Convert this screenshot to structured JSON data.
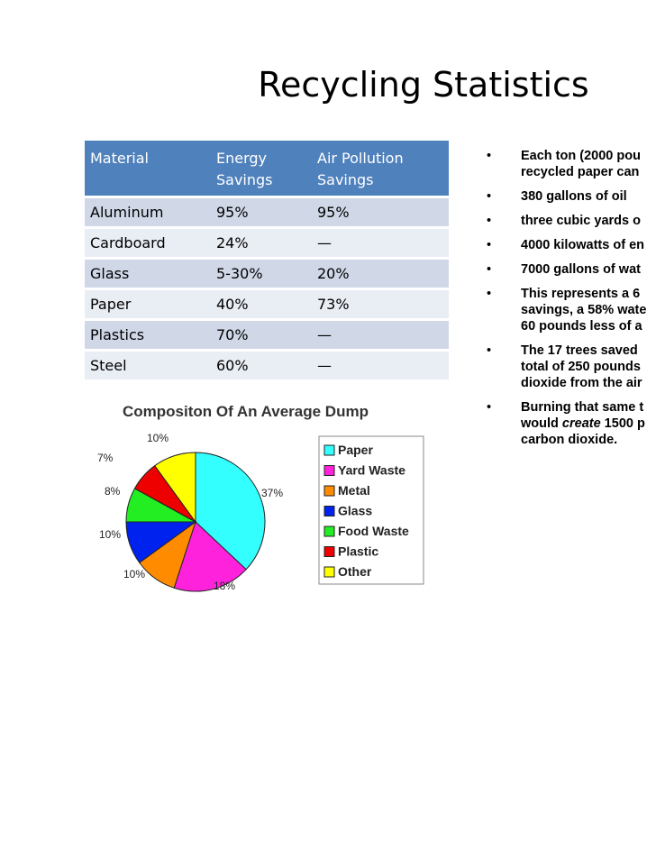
{
  "title": "Recycling Statistics",
  "table": {
    "headers": [
      "Material",
      "Energy Savings",
      "Air Pollution Savings"
    ],
    "rows": [
      [
        "Aluminum",
        "95%",
        "95%"
      ],
      [
        "Cardboard",
        "24%",
        "—"
      ],
      [
        "Glass",
        "5-30%",
        "20%"
      ],
      [
        "Paper",
        "40%",
        "73%"
      ],
      [
        "Plastics",
        "70%",
        "—"
      ],
      [
        "Steel",
        "60%",
        "—"
      ]
    ],
    "header_color": "#4f81bd",
    "row_colors": [
      "#d0d8e8",
      "#e9edf4"
    ]
  },
  "bullets": [
    {
      "lines": [
        "Each ton (2000 pou",
        "recycled paper can"
      ]
    },
    {
      "lines": [
        "380 gallons of oil"
      ]
    },
    {
      "lines": [
        " three cubic yards o"
      ]
    },
    {
      "lines": [
        "4000 kilowatts of en"
      ]
    },
    {
      "lines": [
        "7000 gallons of wat"
      ]
    },
    {
      "lines": [
        "This represents a 6",
        "savings, a 58% wate",
        "60 pounds less of a"
      ]
    },
    {
      "lines": [
        "The 17 trees saved",
        "total of 250 pounds",
        "dioxide from the air"
      ]
    },
    {
      "lines": [
        "Burning that same t",
        "would create 1500 p",
        "carbon dioxide."
      ]
    }
  ],
  "chart_data": {
    "type": "pie",
    "title": "Compositon Of An Average Dump",
    "legend_position": "right",
    "slices": [
      {
        "name": "Paper",
        "value": 37,
        "label": "37%",
        "color": "#33ffff"
      },
      {
        "name": "Yard Waste",
        "value": 18,
        "label": "18%",
        "color": "#ff22dd"
      },
      {
        "name": "Metal",
        "value": 10,
        "label": "10%",
        "color": "#ff8c00"
      },
      {
        "name": "Glass",
        "value": 10,
        "label": "10%",
        "color": "#0022ee"
      },
      {
        "name": "Food Waste",
        "value": 8,
        "label": "8%",
        "color": "#22ee22"
      },
      {
        "name": "Plastic",
        "value": 7,
        "label": "7%",
        "color": "#ee0000"
      },
      {
        "name": "Other",
        "value": 10,
        "label": "10%",
        "color": "#ffff00"
      }
    ]
  }
}
